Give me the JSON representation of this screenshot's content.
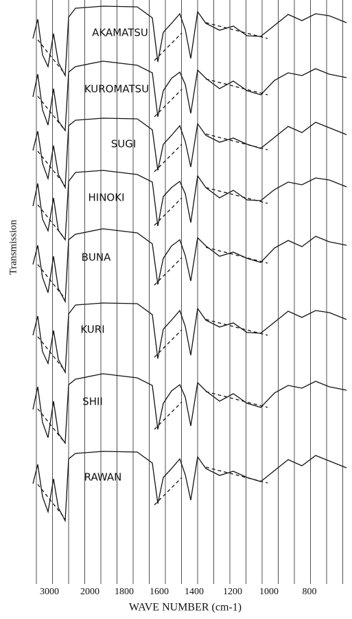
{
  "axis": {
    "y_label": "Transmission",
    "x_label": "WAVE NUMBER (cm-1)",
    "ticks": [
      "3000",
      "2000",
      "1800",
      "1600",
      "1400",
      "1200",
      "1000",
      "800"
    ]
  },
  "spectra": [
    {
      "label": "AKAMATSU"
    },
    {
      "label": "KUROMATSU"
    },
    {
      "label": "SUGI"
    },
    {
      "label": "HINOKI"
    },
    {
      "label": "BUNA"
    },
    {
      "label": "KURI"
    },
    {
      "label": "SHII"
    },
    {
      "label": "RAWAN"
    }
  ]
}
